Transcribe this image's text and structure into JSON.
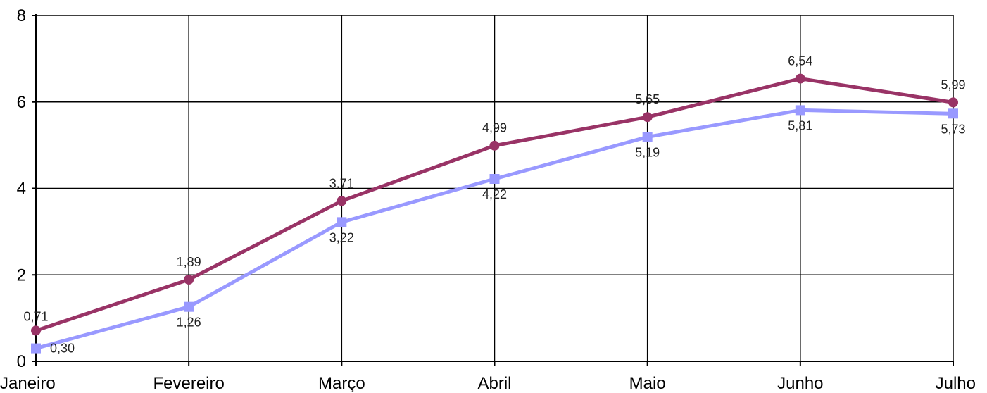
{
  "chart_data": {
    "type": "line",
    "title": "",
    "xlabel": "",
    "ylabel": "",
    "categories": [
      "Janeiro",
      "Fevereiro",
      "Março",
      "Abril",
      "Maio",
      "Junho",
      "Julho"
    ],
    "ylim": [
      0,
      8
    ],
    "yticks": [
      0,
      2,
      4,
      6,
      8
    ],
    "grid": true,
    "legend": "none",
    "series": [
      {
        "values": [
          0.71,
          1.89,
          3.71,
          4.99,
          5.65,
          6.54,
          5.99
        ],
        "labels": [
          "0,71",
          "1,89",
          "3,71",
          "4,99",
          "5,65",
          "6,54",
          "5,99"
        ],
        "color": "#993366",
        "marker": "circle",
        "label_position": "above"
      },
      {
        "values": [
          0.3,
          1.26,
          3.22,
          4.22,
          5.19,
          5.81,
          5.73
        ],
        "labels": [
          "0,30",
          "1,26",
          "3,22",
          "4,22",
          "5,19",
          "5,81",
          "5,73"
        ],
        "color": "#9999ff",
        "marker": "square",
        "label_position": "below"
      }
    ]
  }
}
